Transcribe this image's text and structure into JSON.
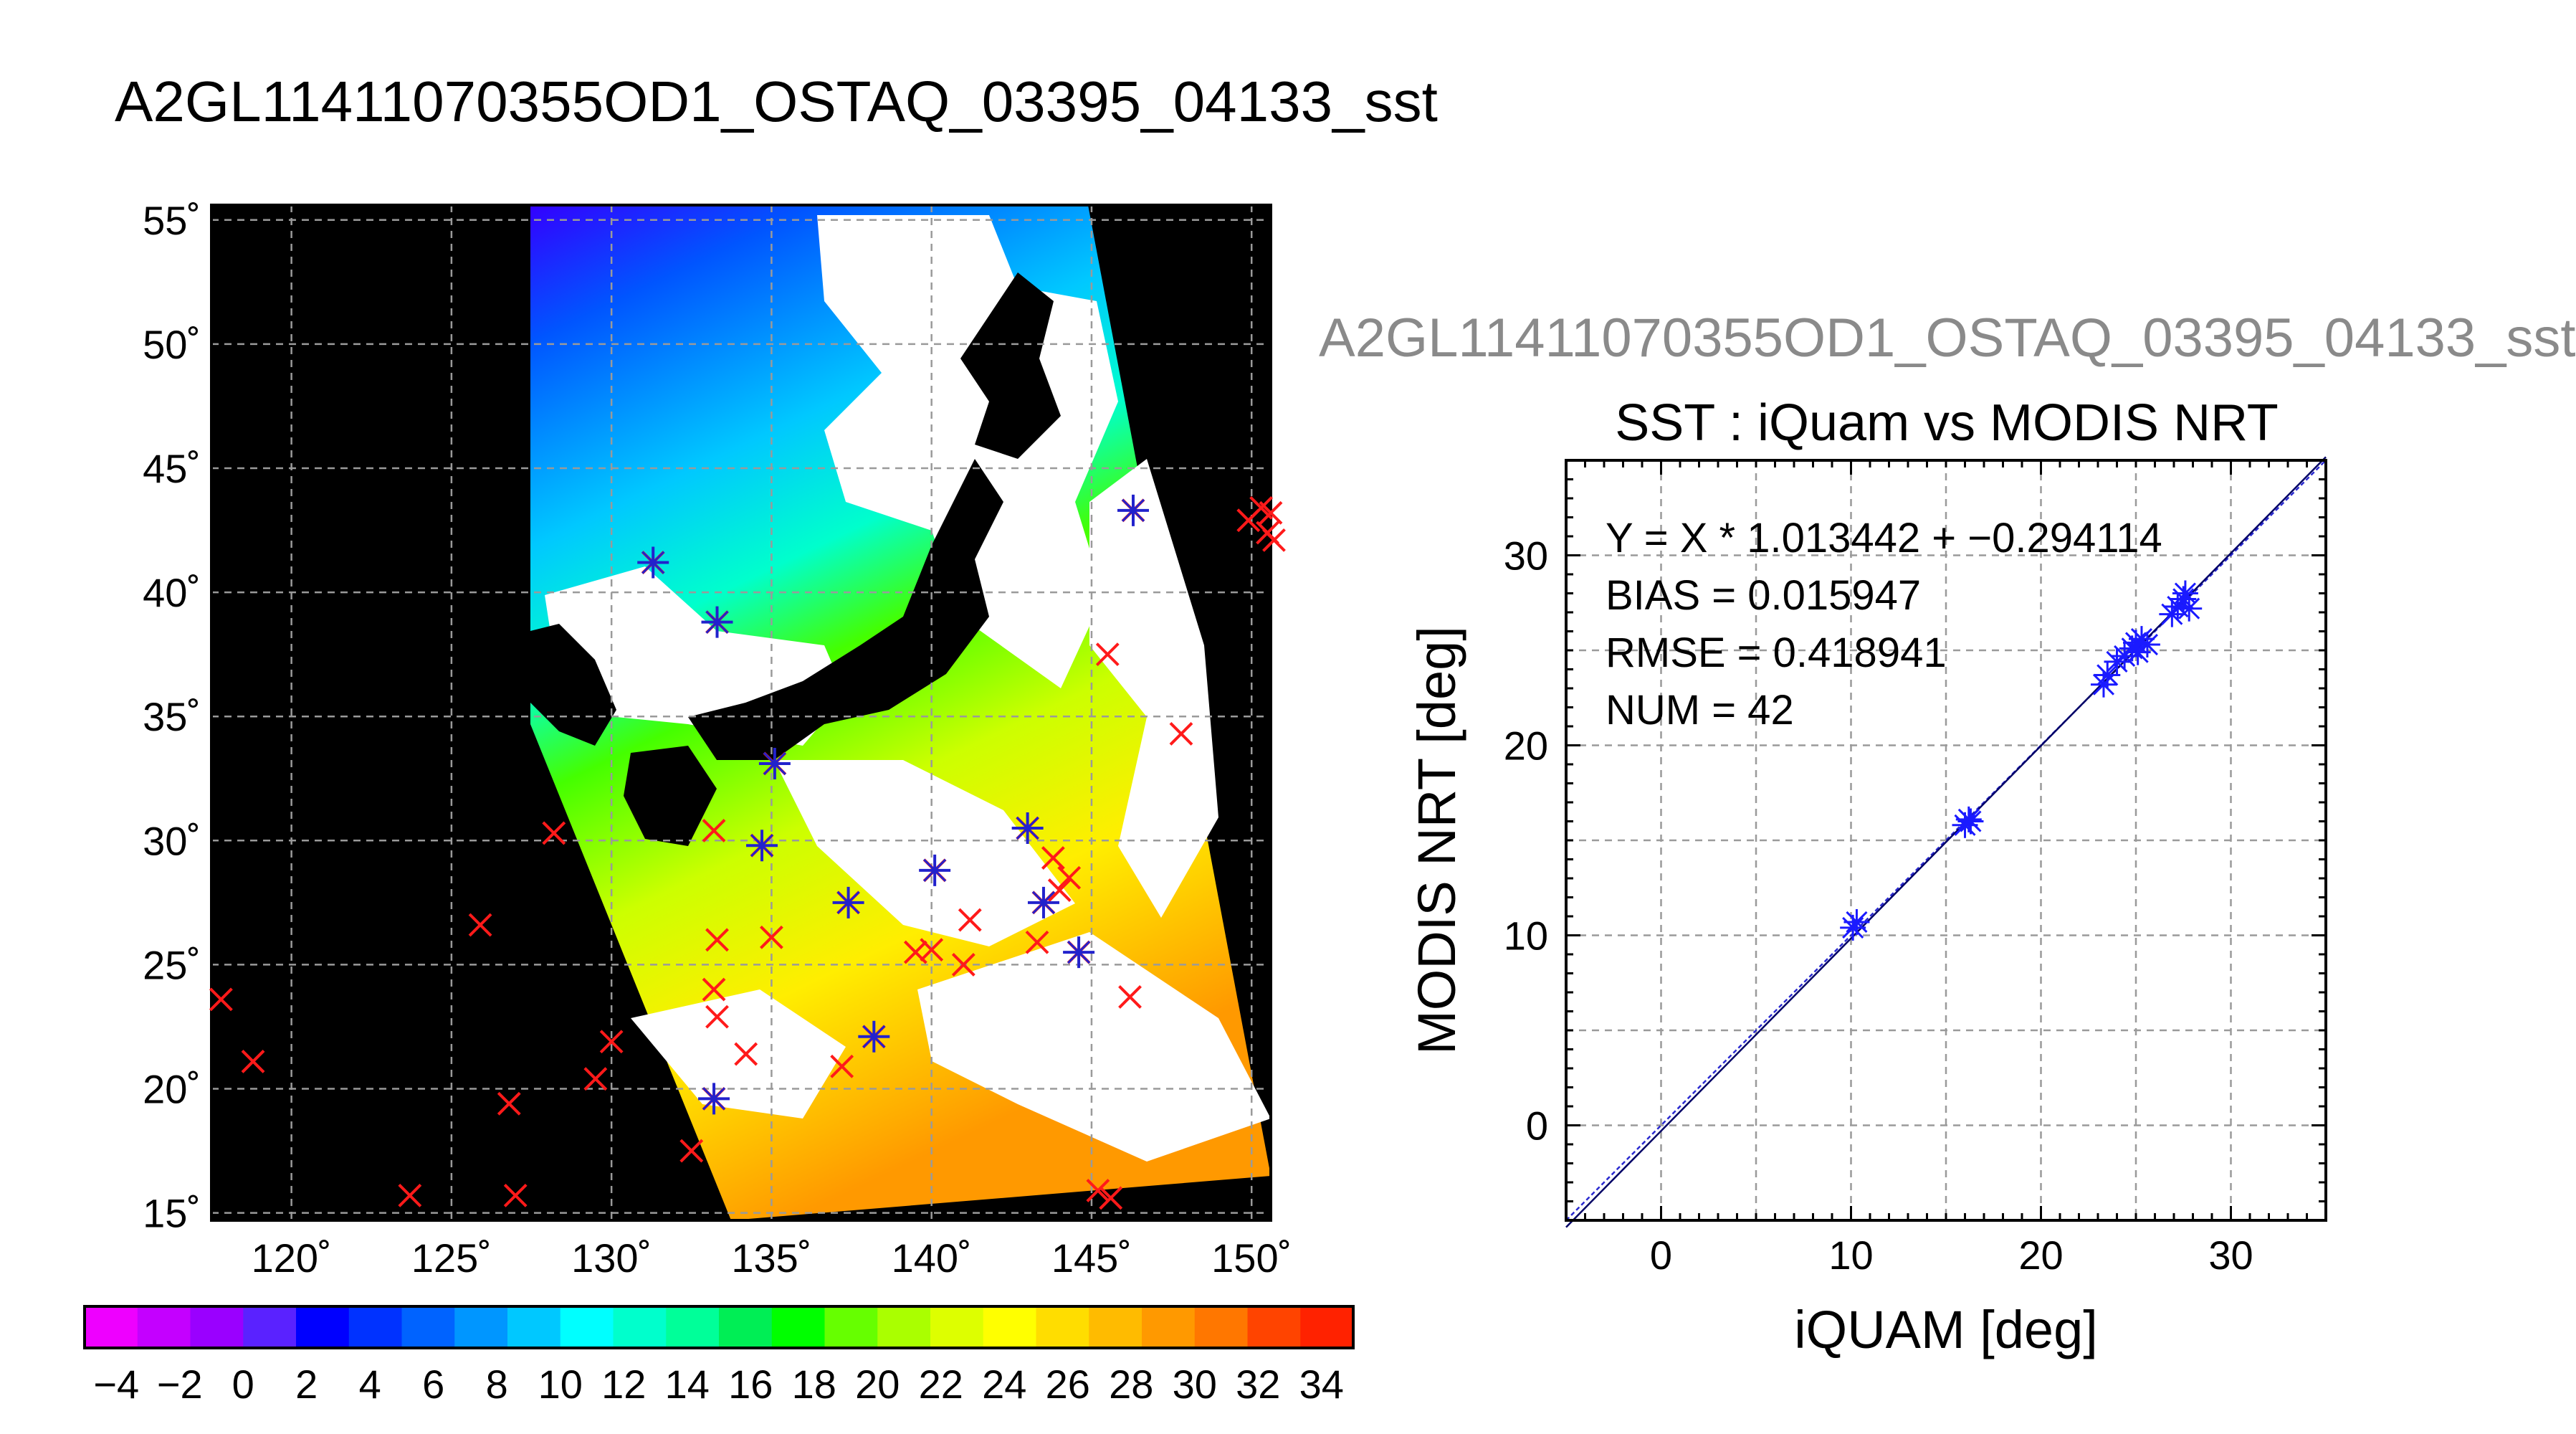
{
  "page_title": "A2GL11411070355OD1_OSTAQ_03395_04133_sst",
  "scatter_file_title": "A2GL11411070355OD1_OSTAQ_03395_04133_sst",
  "chart_data": [
    {
      "type": "map",
      "xticks": [
        120,
        125,
        130,
        135,
        140,
        145,
        150
      ],
      "yticks": [
        15,
        20,
        25,
        30,
        35,
        40,
        45,
        50,
        55
      ],
      "xtick_labels": [
        "120˚",
        "125˚",
        "130˚",
        "135˚",
        "140˚",
        "145˚",
        "150˚"
      ],
      "ytick_labels": [
        "15˚",
        "20˚",
        "25˚",
        "30˚",
        "35˚",
        "40˚",
        "45˚",
        "50˚",
        "55˚"
      ],
      "lon_range": [
        117.5,
        150.6
      ],
      "lat_range": [
        14.7,
        55.6
      ],
      "grid": true,
      "matched_points": [
        [
          131.3,
          41.2
        ],
        [
          133.3,
          38.8
        ],
        [
          135.1,
          33.1
        ],
        [
          134.7,
          29.8
        ],
        [
          137.4,
          27.5
        ],
        [
          140.1,
          28.8
        ],
        [
          143.0,
          30.5
        ],
        [
          143.5,
          27.5
        ],
        [
          144.6,
          25.5
        ],
        [
          138.2,
          22.1
        ],
        [
          133.2,
          19.6
        ],
        [
          146.3,
          43.3
        ]
      ],
      "unmatched_points": [
        [
          117.8,
          23.6
        ],
        [
          118.8,
          21.1
        ],
        [
          123.7,
          15.7
        ],
        [
          125.9,
          26.6
        ],
        [
          126.8,
          19.4
        ],
        [
          127.0,
          15.7
        ],
        [
          128.2,
          30.3
        ],
        [
          129.5,
          20.4
        ],
        [
          130.0,
          21.9
        ],
        [
          132.5,
          17.5
        ],
        [
          133.2,
          30.4
        ],
        [
          133.3,
          26.0
        ],
        [
          133.2,
          24.0
        ],
        [
          133.3,
          22.9
        ],
        [
          134.2,
          21.4
        ],
        [
          135.0,
          26.1
        ],
        [
          137.2,
          20.9
        ],
        [
          139.5,
          25.5
        ],
        [
          140.0,
          25.6
        ],
        [
          141.0,
          25.0
        ],
        [
          141.2,
          26.8
        ],
        [
          143.3,
          25.9
        ],
        [
          143.8,
          29.3
        ],
        [
          144.3,
          28.5
        ],
        [
          144.0,
          28.0
        ],
        [
          145.5,
          37.5
        ],
        [
          146.2,
          23.7
        ],
        [
          147.8,
          34.3
        ],
        [
          145.2,
          15.9
        ],
        [
          145.6,
          15.6
        ],
        [
          149.9,
          42.9
        ],
        [
          150.3,
          43.4
        ],
        [
          150.6,
          43.2
        ],
        [
          150.5,
          42.4
        ],
        [
          150.7,
          42.1
        ]
      ]
    },
    {
      "type": "colorbar",
      "range": [
        -5,
        35
      ],
      "tick_labels": [
        "−4",
        "−2",
        "0",
        "2",
        "4",
        "6",
        "8",
        "10",
        "12",
        "14",
        "16",
        "18",
        "20",
        "22",
        "24",
        "26",
        "28",
        "30",
        "32",
        "34"
      ],
      "tick_values": [
        -4,
        -2,
        0,
        2,
        4,
        6,
        8,
        10,
        12,
        14,
        16,
        18,
        20,
        22,
        24,
        26,
        28,
        30,
        32,
        34
      ],
      "colors": [
        "#ee00ff",
        "#c400ff",
        "#9a00ff",
        "#5a22ff",
        "#0000ff",
        "#0032ff",
        "#0063ff",
        "#0096ff",
        "#00c8ff",
        "#00ffff",
        "#00ffcc",
        "#00ff99",
        "#00ee55",
        "#00ff00",
        "#66ff00",
        "#aaff00",
        "#ddff00",
        "#ffff00",
        "#ffdd00",
        "#ffbb00",
        "#ff9900",
        "#ff7700",
        "#ff4400",
        "#ff2200"
      ]
    },
    {
      "type": "scatter",
      "title": "SST : iQuam vs MODIS NRT",
      "xlabel": "iQUAM [deg]",
      "ylabel": "MODIS NRT [deg]",
      "xlim": [
        -5,
        35
      ],
      "ylim": [
        -5,
        35
      ],
      "xticks": [
        0,
        10,
        20,
        30
      ],
      "yticks": [
        0,
        10,
        20,
        30
      ],
      "grid": true,
      "annotations": [
        "Y = X * 1.013442 + −0.294114",
        "BIAS = 0.015947",
        "RMSE = 0.418941",
        "NUM = 42"
      ],
      "regression": {
        "slope": 1.013442,
        "intercept": -0.294114
      },
      "points": [
        [
          10.1,
          10.4
        ],
        [
          10.3,
          10.7
        ],
        [
          16.0,
          15.8
        ],
        [
          16.2,
          16.1
        ],
        [
          16.3,
          16.0
        ],
        [
          23.3,
          23.2
        ],
        [
          23.5,
          23.7
        ],
        [
          24.0,
          24.4
        ],
        [
          24.4,
          24.7
        ],
        [
          24.8,
          25.1
        ],
        [
          25.0,
          25.4
        ],
        [
          25.1,
          24.9
        ],
        [
          25.3,
          25.6
        ],
        [
          25.6,
          25.3
        ],
        [
          26.9,
          26.9
        ],
        [
          27.2,
          27.3
        ],
        [
          27.5,
          27.7
        ],
        [
          27.6,
          28.0
        ],
        [
          27.8,
          27.2
        ]
      ]
    }
  ]
}
